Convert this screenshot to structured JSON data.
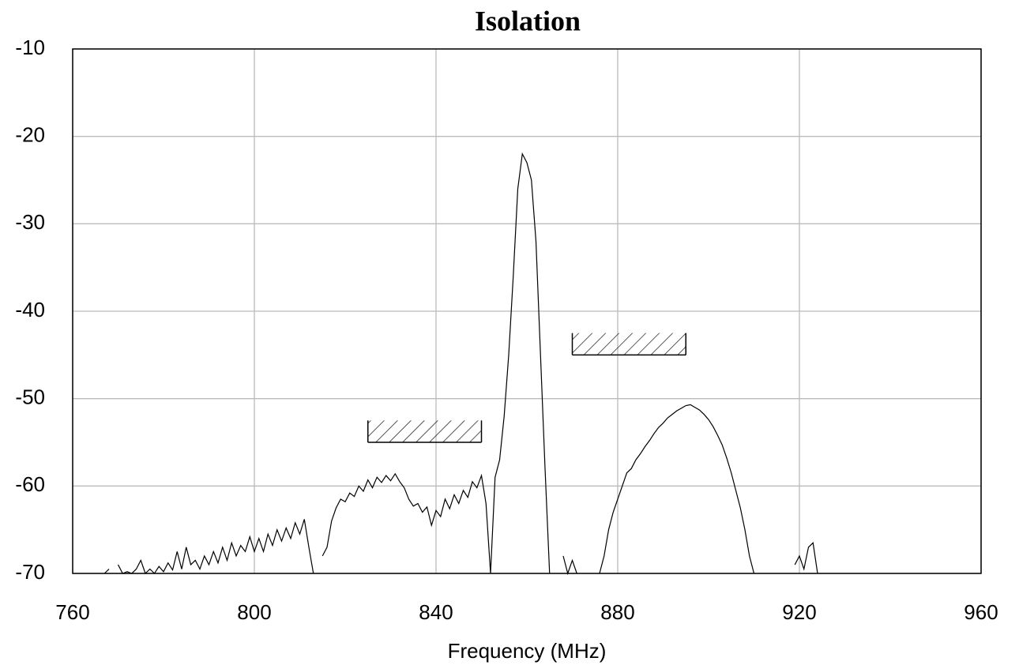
{
  "chart_data": {
    "type": "line",
    "title": "Isolation",
    "x_label": "Frequency (MHz)",
    "xlim": [
      760,
      960
    ],
    "ylim": [
      -70,
      -10
    ],
    "xticks": [
      760,
      800,
      840,
      880,
      920,
      960
    ],
    "yticks": [
      -10,
      -20,
      -30,
      -40,
      -50,
      -60,
      -70
    ],
    "grid": true,
    "color": "#000000",
    "x": [
      763,
      764,
      765,
      766,
      767,
      768,
      769,
      770,
      771,
      772,
      773,
      774,
      775,
      776,
      777,
      778,
      779,
      780,
      781,
      782,
      783,
      784,
      785,
      786,
      787,
      788,
      789,
      790,
      791,
      792,
      793,
      794,
      795,
      796,
      797,
      798,
      799,
      800,
      801,
      802,
      803,
      804,
      805,
      806,
      807,
      808,
      809,
      810,
      811,
      812,
      813,
      814,
      815,
      816,
      817,
      818,
      819,
      820,
      821,
      822,
      823,
      824,
      825,
      826,
      827,
      828,
      829,
      830,
      831,
      832,
      833,
      834,
      835,
      836,
      837,
      838,
      839,
      840,
      841,
      842,
      843,
      844,
      845,
      846,
      847,
      848,
      849,
      850,
      851,
      852,
      853,
      854,
      855,
      856,
      857,
      858,
      859,
      860,
      861,
      862,
      863,
      864,
      865,
      866,
      867,
      868,
      869,
      870,
      871,
      872,
      873,
      874,
      875,
      876,
      877,
      878,
      879,
      880,
      881,
      882,
      883,
      884,
      885,
      886,
      887,
      888,
      889,
      890,
      891,
      892,
      893,
      894,
      895,
      896,
      897,
      898,
      899,
      900,
      901,
      902,
      903,
      904,
      905,
      906,
      907,
      908,
      909,
      910,
      911,
      912,
      913,
      914,
      915,
      916,
      917,
      918,
      919,
      920,
      921,
      922,
      923,
      924
    ],
    "values": [
      -68,
      null,
      null,
      null,
      -70,
      -69.5,
      null,
      -69,
      -70,
      -69.8,
      -70,
      -69.5,
      -68.5,
      -70,
      -69.5,
      -70,
      -69.2,
      -69.8,
      -68.8,
      -69.6,
      -67.5,
      -69.5,
      -67,
      -69,
      -68.5,
      -69.5,
      -68,
      -69,
      -67.5,
      -68.8,
      -67,
      -68.5,
      -66.5,
      -68,
      -66.8,
      -67.5,
      -65.8,
      -67.5,
      -66,
      -67.5,
      -65.5,
      -66.8,
      -65,
      -66.3,
      -64.8,
      -66,
      -64.2,
      -65.5,
      -63.8,
      -67,
      -70,
      null,
      -68,
      -67,
      -64,
      -62.5,
      -61.5,
      -61.8,
      -60.8,
      -61.2,
      -60,
      -60.6,
      -59.3,
      -60.2,
      -59,
      -59.6,
      -58.8,
      -59.4,
      -58.6,
      -59.5,
      -60.2,
      -61.5,
      -62.3,
      -62,
      -63,
      -62.4,
      -64.5,
      -62.8,
      -63.5,
      -61.5,
      -62.6,
      -61,
      -62,
      -60.5,
      -61.3,
      -59.5,
      -60.2,
      -58.8,
      -62,
      -70,
      -59,
      -57,
      -52,
      -45,
      -36,
      -26,
      -22,
      -23,
      -25,
      -32,
      -45,
      -58,
      -70,
      null,
      null,
      -68,
      -70,
      -68.5,
      -70,
      null,
      null,
      -70,
      null,
      -70,
      -68,
      -65,
      -63,
      -61.5,
      -60,
      -58.5,
      -58,
      -57,
      -56.3,
      -55.5,
      -54.8,
      -54,
      -53.3,
      -52.8,
      -52.2,
      -51.8,
      -51.4,
      -51.1,
      -50.8,
      -50.7,
      -51,
      -51.3,
      -51.8,
      -52.4,
      -53.2,
      -54.2,
      -55.3,
      -56.8,
      -58.5,
      -60.5,
      -62.5,
      -65,
      -68,
      -70,
      null,
      null,
      null,
      null,
      null,
      null,
      null,
      null,
      -69,
      -68,
      -69.5,
      -67,
      -66.5,
      -70
    ],
    "limits": [
      {
        "x": [
          825,
          850
        ],
        "y": [
          -55,
          -52.5
        ]
      },
      {
        "x": [
          870,
          895
        ],
        "y": [
          -45,
          -42.5
        ]
      }
    ]
  }
}
